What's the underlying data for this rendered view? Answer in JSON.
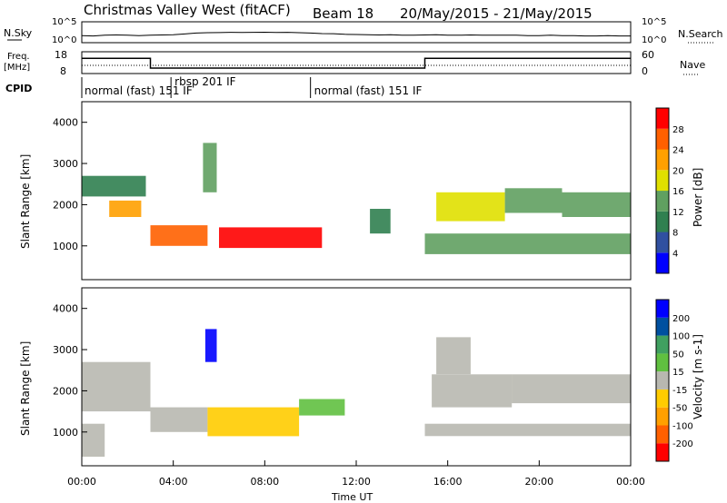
{
  "header": {
    "station": "Christmas Valley West (fitACF)",
    "beam": "Beam 18",
    "dates": "20/May/2015 - 21/May/2015"
  },
  "x_axis": {
    "title": "Time UT",
    "ticks": [
      "00:00",
      "04:00",
      "08:00",
      "12:00",
      "16:00",
      "20:00",
      "00:00"
    ],
    "range_hours": [
      0,
      24
    ]
  },
  "nsky_panel": {
    "label": "N.Sky",
    "right_label": "N.Search",
    "yticks": [
      "10^5",
      "10^0"
    ],
    "right_yticks": [
      "10^5",
      "10^0"
    ]
  },
  "freq_panel": {
    "label_line1": "Freq.",
    "label_line2": "[MHz]",
    "right_label": "Nave",
    "yticks": [
      "18",
      "8"
    ],
    "right_yticks": [
      "60",
      "0"
    ]
  },
  "cpid_panel": {
    "label": "CPID",
    "segments": [
      {
        "label": "normal (fast) 151 IF",
        "start": 0,
        "end": 3.9
      },
      {
        "label": "rbsp 201 IF",
        "start": 3.9,
        "end": 10.0
      },
      {
        "label": "normal (fast) 151 IF",
        "start": 10.0,
        "end": 24
      }
    ]
  },
  "power_panel": {
    "ylabel": "Slant Range [km]",
    "yticks": [
      "1000",
      "2000",
      "3000",
      "4000"
    ],
    "colorbar_label": "Power [dB]",
    "colorbar_ticks": [
      "28",
      "24",
      "20",
      "16",
      "12",
      "8",
      "4"
    ]
  },
  "velocity_panel": {
    "ylabel": "Slant Range [km]",
    "yticks": [
      "1000",
      "2000",
      "3000",
      "4000"
    ],
    "colorbar_label": "Velocity [m s-1]",
    "colorbar_ticks": [
      "200",
      "100",
      "50",
      "15",
      "-15",
      "-50",
      "-100",
      "-200"
    ]
  },
  "colors": {
    "power": [
      "#0000ff",
      "#3050a0",
      "#308050",
      "#60a060",
      "#e0e000",
      "#ffa000",
      "#ff6000",
      "#ff0000"
    ],
    "velocity": [
      "#ff0000",
      "#ff6000",
      "#ffa000",
      "#ffcc00",
      "#b8b8b0",
      "#60c040",
      "#40a060",
      "#0050a0",
      "#0000ff"
    ]
  },
  "chart_data": [
    {
      "type": "line",
      "title": "N.Sky",
      "x_range": [
        0,
        24
      ],
      "y_scale": "log",
      "ylim": [
        1,
        100000
      ],
      "x": [
        0,
        0.5,
        1,
        1.5,
        2,
        2.5,
        3,
        3.5,
        4,
        4.5,
        5,
        5.5,
        6,
        6.5,
        7,
        7.5,
        8,
        8.5,
        9,
        9.5,
        10,
        10.5,
        11,
        11.5,
        12,
        12.5,
        13,
        13.5,
        14,
        14.5,
        15,
        15.5,
        16,
        16.5,
        17,
        17.5,
        18,
        18.5,
        19,
        19.5,
        20,
        20.5,
        21,
        21.5,
        22,
        22.5,
        23,
        23.5,
        24
      ],
      "values": [
        50,
        40,
        60,
        70,
        60,
        50,
        60,
        70,
        80,
        120,
        200,
        250,
        260,
        300,
        280,
        300,
        320,
        280,
        300,
        250,
        200,
        150,
        140,
        100,
        90,
        80,
        70,
        80,
        60,
        60,
        70,
        80,
        60,
        60,
        70,
        60,
        60,
        60,
        60,
        50,
        50,
        60,
        50,
        50,
        40,
        40,
        50,
        40,
        40
      ]
    },
    {
      "type": "line",
      "title": "Freq. [MHz]",
      "x_range": [
        0,
        24
      ],
      "ylim": [
        8,
        18
      ],
      "x": [
        0,
        3,
        3,
        15,
        15,
        24
      ],
      "values": [
        15,
        15,
        10.5,
        10.5,
        15,
        15
      ]
    },
    {
      "type": "heatmap",
      "title": "Power [dB]",
      "xlabel": "Time UT",
      "ylabel": "Slant Range [km]",
      "x_range": [
        0,
        24
      ],
      "ylim": [
        180,
        4500
      ],
      "value_range": [
        0,
        30
      ],
      "regions": [
        {
          "t": [
            0,
            2.8
          ],
          "r": [
            2200,
            2700
          ],
          "value": 10
        },
        {
          "t": [
            1.2,
            2.6
          ],
          "r": [
            1700,
            2100
          ],
          "value": 20
        },
        {
          "t": [
            3.0,
            5.5
          ],
          "r": [
            1000,
            1500
          ],
          "value": 26
        },
        {
          "t": [
            6.0,
            10.5
          ],
          "r": [
            950,
            1450
          ],
          "value": 28
        },
        {
          "t": [
            5.3,
            5.9
          ],
          "r": [
            2300,
            3500
          ],
          "value": 12
        },
        {
          "t": [
            12.6,
            13.5
          ],
          "r": [
            1300,
            1900
          ],
          "value": 10
        },
        {
          "t": [
            15.5,
            18.5
          ],
          "r": [
            1600,
            2300
          ],
          "value": 18
        },
        {
          "t": [
            15.0,
            24
          ],
          "r": [
            800,
            1300
          ],
          "value": 14
        },
        {
          "t": [
            18.5,
            21.0
          ],
          "r": [
            1800,
            2400
          ],
          "value": 12
        },
        {
          "t": [
            21.0,
            24
          ],
          "r": [
            1700,
            2300
          ],
          "value": 14
        }
      ]
    },
    {
      "type": "heatmap",
      "title": "Velocity [m s-1]",
      "xlabel": "Time UT",
      "ylabel": "Slant Range [km]",
      "x_range": [
        0,
        24
      ],
      "ylim": [
        180,
        4500
      ],
      "value_range": [
        -200,
        200
      ],
      "regions": [
        {
          "t": [
            0,
            3.0
          ],
          "r": [
            1500,
            2700
          ],
          "value": 0
        },
        {
          "t": [
            0,
            1.0
          ],
          "r": [
            400,
            1200
          ],
          "value": 0
        },
        {
          "t": [
            3.0,
            5.5
          ],
          "r": [
            1000,
            1600
          ],
          "value": 0
        },
        {
          "t": [
            5.5,
            9.5
          ],
          "r": [
            900,
            1600
          ],
          "value": -60
        },
        {
          "t": [
            9.5,
            11.5
          ],
          "r": [
            1400,
            1800
          ],
          "value": 40
        },
        {
          "t": [
            5.4,
            5.9
          ],
          "r": [
            2700,
            3500
          ],
          "value": 200
        },
        {
          "t": [
            15.3,
            18.8
          ],
          "r": [
            1600,
            2400
          ],
          "value": 0
        },
        {
          "t": [
            15.0,
            24
          ],
          "r": [
            900,
            1200
          ],
          "value": 0
        },
        {
          "t": [
            18.8,
            24
          ],
          "r": [
            1700,
            2400
          ],
          "value": 0
        },
        {
          "t": [
            15.5,
            17.0
          ],
          "r": [
            2400,
            3300
          ],
          "value": 20
        }
      ]
    }
  ]
}
